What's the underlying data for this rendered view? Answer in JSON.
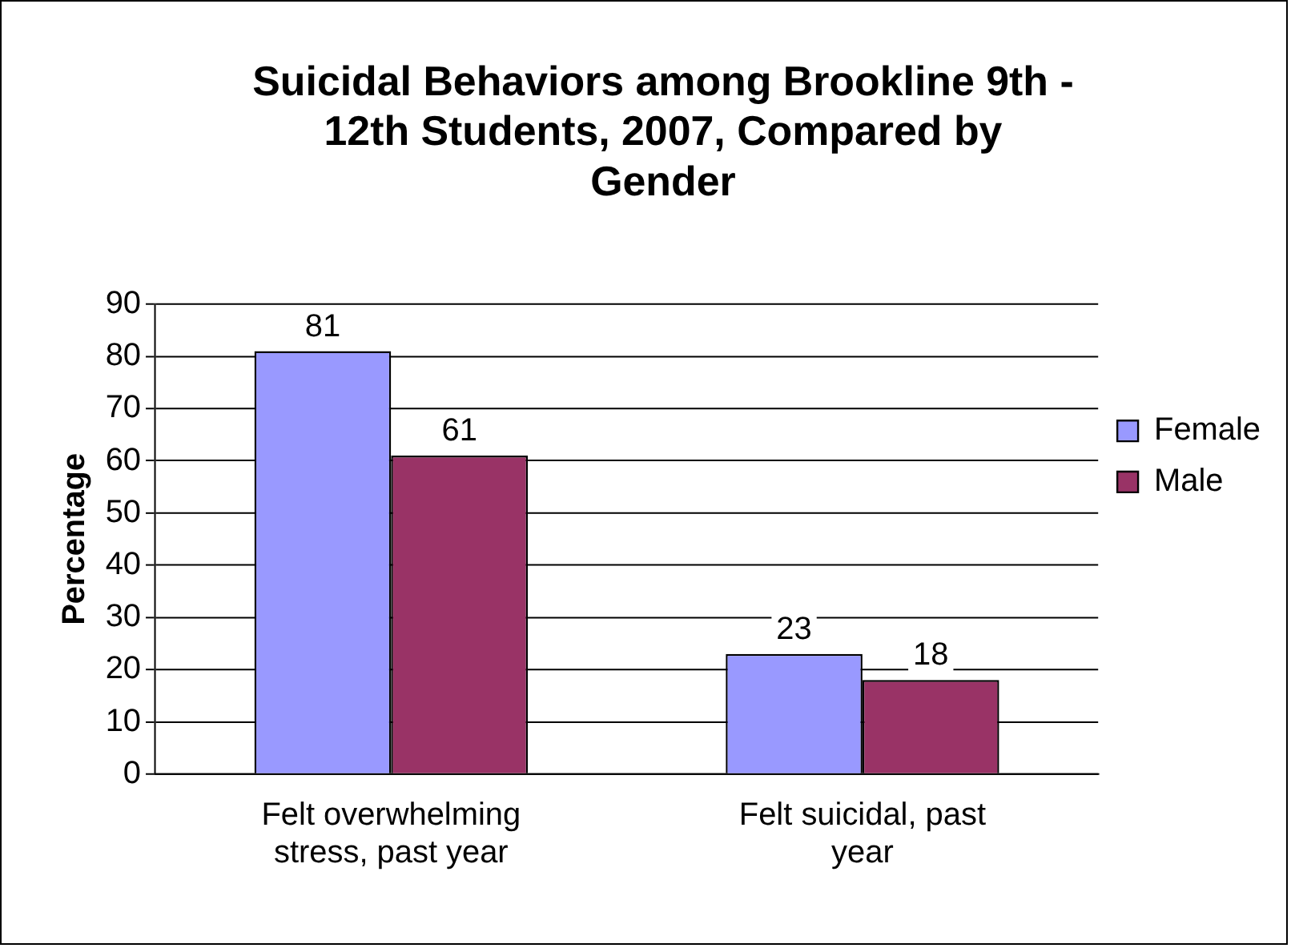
{
  "chart_data": {
    "type": "bar",
    "title": "Suicidal Behaviors among Brookline 9th - 12th Students, 2007, Compared by Gender",
    "ylabel": "Percentage",
    "categories": [
      "Felt overwhelming stress, past year",
      "Felt suicidal, past year"
    ],
    "series": [
      {
        "name": "Female",
        "color": "#9999ff",
        "values": [
          81,
          23
        ]
      },
      {
        "name": "Male",
        "color": "#993366",
        "values": [
          61,
          18
        ]
      }
    ],
    "ylim": [
      0,
      90
    ],
    "yticks": [
      0,
      10,
      20,
      30,
      40,
      50,
      60,
      70,
      80,
      90
    ],
    "grid": "y",
    "legend": "right",
    "data_labels": true
  }
}
